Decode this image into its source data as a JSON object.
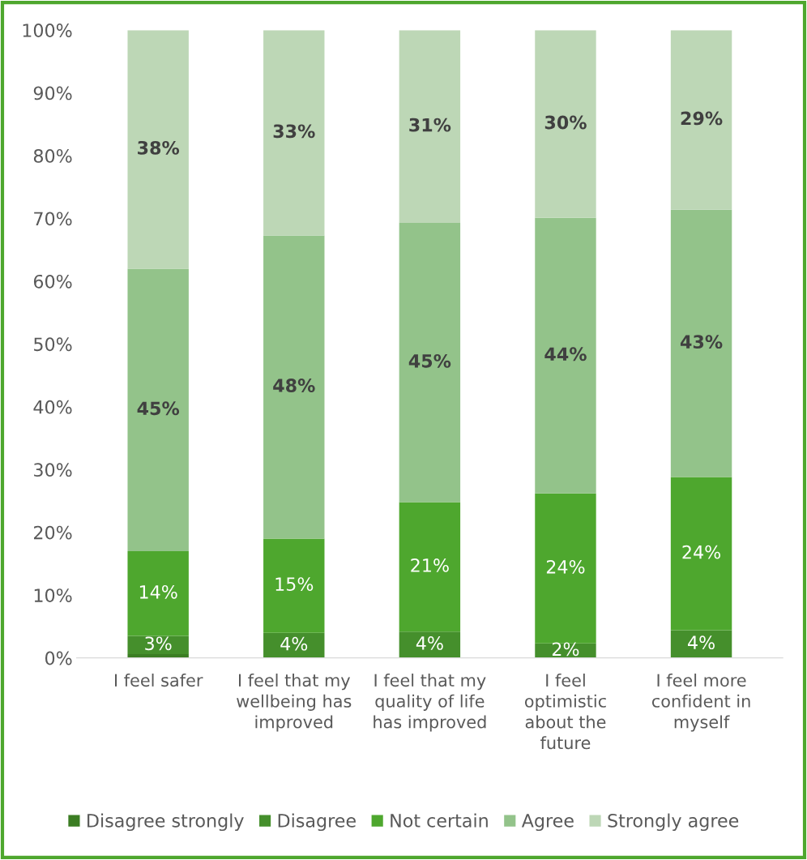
{
  "chart_data": {
    "type": "bar",
    "stacked": true,
    "categories": [
      "I feel safer",
      "I feel that my wellbeing has improved",
      "I feel that my quality of life has improved",
      "I feel optimistic about the future",
      "I feel more confident in myself"
    ],
    "series": [
      {
        "name": "Disagree strongly",
        "color": "#3b7d23",
        "values": [
          0.6,
          0,
          0,
          0,
          0
        ],
        "value_labels": [
          null,
          null,
          null,
          null,
          null
        ]
      },
      {
        "name": "Disagree",
        "color": "#458f2c",
        "values": [
          2.9,
          4,
          4.2,
          2.3,
          4.4
        ],
        "value_labels": [
          "3%",
          "4%",
          "4%",
          "2%",
          "4%"
        ]
      },
      {
        "name": "Not certain",
        "color": "#4ea72e",
        "values": [
          13.5,
          15,
          20.6,
          23.9,
          24.4
        ],
        "value_labels": [
          "14%",
          "15%",
          "21%",
          "24%",
          "24%"
        ]
      },
      {
        "name": "Agree",
        "color": "#93c38a",
        "values": [
          45,
          48.3,
          44.5,
          43.9,
          42.6
        ],
        "value_labels": [
          "45%",
          "48%",
          "45%",
          "44%",
          "43%"
        ]
      },
      {
        "name": "Strongly agree",
        "color": "#bdd7b6",
        "values": [
          38,
          32.7,
          30.7,
          29.9,
          28.6
        ],
        "value_labels": [
          "38%",
          "33%",
          "31%",
          "30%",
          "29%"
        ]
      }
    ],
    "ylim": [
      0,
      100
    ],
    "yticks": [
      {
        "value": 0,
        "label": "0%"
      },
      {
        "value": 10,
        "label": "10%"
      },
      {
        "value": 20,
        "label": "20%"
      },
      {
        "value": 30,
        "label": "30%"
      },
      {
        "value": 40,
        "label": "40%"
      },
      {
        "value": 50,
        "label": "50%"
      },
      {
        "value": 60,
        "label": "60%"
      },
      {
        "value": 70,
        "label": "70%"
      },
      {
        "value": 80,
        "label": "80%"
      },
      {
        "value": 90,
        "label": "90%"
      },
      {
        "value": 100,
        "label": "100%"
      }
    ],
    "grid": false,
    "legend": "bottom"
  }
}
